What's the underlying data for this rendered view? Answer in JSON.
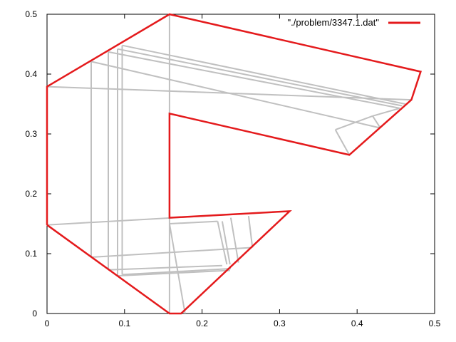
{
  "chart_data": {
    "type": "line",
    "title": "",
    "xlabel": "",
    "ylabel": "",
    "xlim": [
      0,
      0.5
    ],
    "ylim": [
      0,
      0.5
    ],
    "x_ticks": [
      "0",
      "0.1",
      "0.2",
      "0.3",
      "0.4",
      "0.5"
    ],
    "y_ticks": [
      "0",
      "0.1",
      "0.2",
      "0.3",
      "0.4",
      "0.5"
    ],
    "grid": false,
    "legend_position": "top-right",
    "series": [
      {
        "name": "\"./problem/3347.1.dat\"",
        "color": "#e41a1c",
        "segments": [
          [
            [
              0.0,
              0.148
            ],
            [
              0.158,
              0.0
            ],
            [
              0.173,
              0.0
            ],
            [
              0.313,
              0.171
            ],
            [
              0.158,
              0.16
            ],
            [
              0.158,
              0.334
            ],
            [
              0.39,
              0.265
            ],
            [
              0.47,
              0.357
            ],
            [
              0.482,
              0.404
            ],
            [
              0.158,
              0.5
            ],
            [
              0.0,
              0.379
            ],
            [
              0.0,
              0.148
            ]
          ]
        ]
      },
      {
        "name": "",
        "color": "#c0c0c0",
        "segments": [
          [
            [
              0.0,
              0.148
            ],
            [
              0.313,
              0.171
            ]
          ],
          [
            [
              0.0,
              0.379
            ],
            [
              0.47,
              0.357
            ]
          ],
          [
            [
              0.158,
              0.5
            ],
            [
              0.158,
              0.0
            ]
          ],
          [
            [
              0.057,
              0.421
            ],
            [
              0.057,
              0.094
            ]
          ],
          [
            [
              0.079,
              0.437
            ],
            [
              0.079,
              0.073
            ]
          ],
          [
            [
              0.091,
              0.442
            ],
            [
              0.091,
              0.063
            ]
          ],
          [
            [
              0.097,
              0.448
            ],
            [
              0.097,
              0.065
            ]
          ],
          [
            [
              0.057,
              0.421
            ],
            [
              0.43,
              0.31
            ]
          ],
          [
            [
              0.079,
              0.437
            ],
            [
              0.455,
              0.343
            ]
          ],
          [
            [
              0.091,
              0.442
            ],
            [
              0.458,
              0.347
            ]
          ],
          [
            [
              0.097,
              0.448
            ],
            [
              0.462,
              0.35
            ]
          ],
          [
            [
              0.057,
              0.094
            ],
            [
              0.262,
              0.11
            ]
          ],
          [
            [
              0.079,
              0.073
            ],
            [
              0.226,
              0.08
            ]
          ],
          [
            [
              0.091,
              0.063
            ],
            [
              0.236,
              0.072
            ]
          ],
          [
            [
              0.097,
              0.065
            ],
            [
              0.237,
              0.075
            ]
          ],
          [
            [
              0.158,
              0.15
            ],
            [
              0.22,
              0.154
            ]
          ],
          [
            [
              0.158,
              0.15
            ],
            [
              0.178,
              0.0
            ]
          ],
          [
            [
              0.22,
              0.154
            ],
            [
              0.232,
              0.082
            ]
          ],
          [
            [
              0.226,
              0.154
            ],
            [
              0.236,
              0.082
            ]
          ],
          [
            [
              0.237,
              0.16
            ],
            [
              0.247,
              0.085
            ]
          ],
          [
            [
              0.26,
              0.163
            ],
            [
              0.265,
              0.11
            ]
          ],
          [
            [
              0.372,
              0.307
            ],
            [
              0.39,
              0.265
            ]
          ],
          [
            [
              0.372,
              0.307
            ],
            [
              0.42,
              0.33
            ]
          ],
          [
            [
              0.42,
              0.33
            ],
            [
              0.43,
              0.31
            ]
          ],
          [
            [
              0.42,
              0.33
            ],
            [
              0.455,
              0.343
            ]
          ]
        ]
      }
    ]
  }
}
